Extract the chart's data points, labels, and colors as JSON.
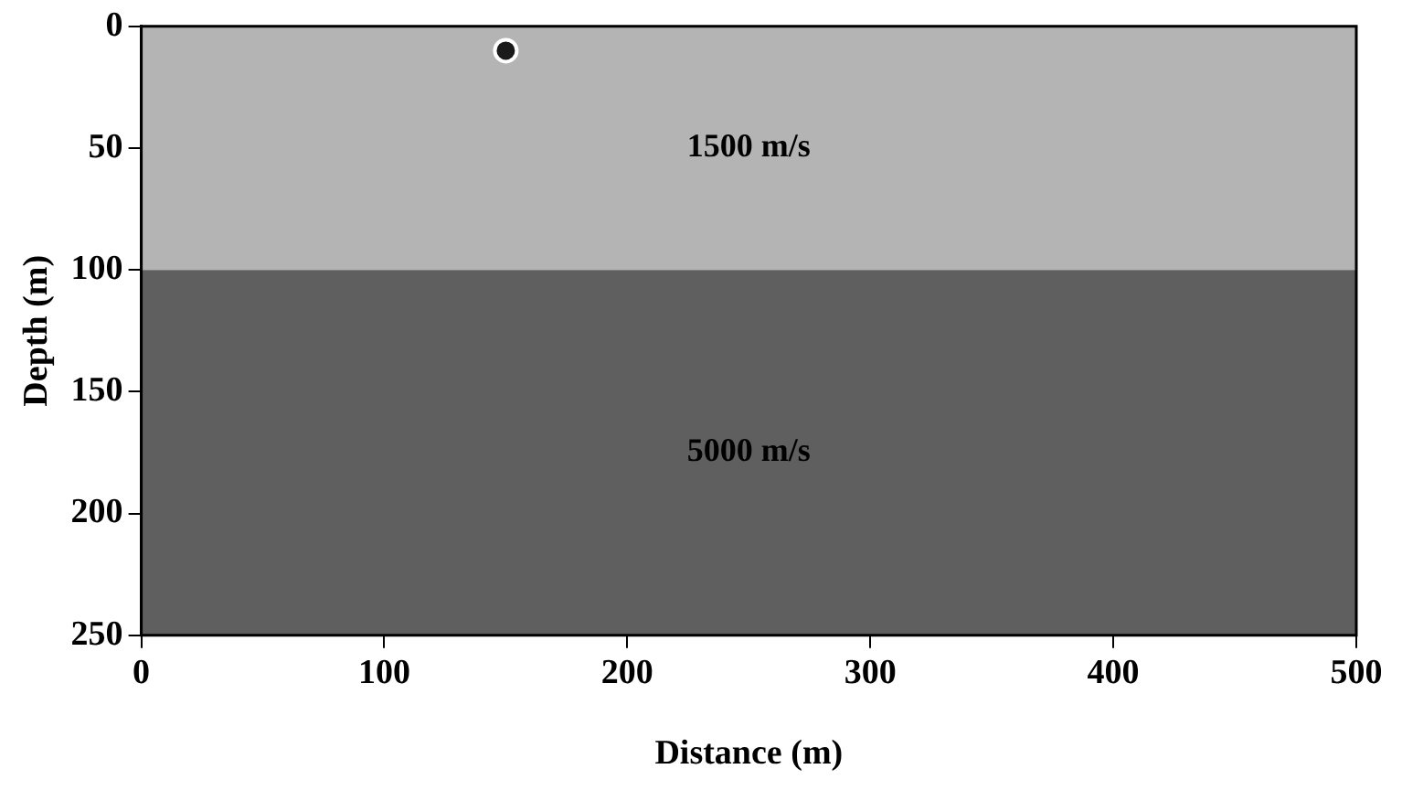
{
  "chart_data": {
    "type": "scatter",
    "xlabel": "Distance (m)",
    "ylabel": "Depth (m)",
    "x": [
      150
    ],
    "values": [
      10
    ],
    "color": "#1a1a1a",
    "marker": "circle",
    "xlim": [
      0,
      500
    ],
    "xticks": [
      0,
      100,
      200,
      300,
      400,
      500
    ],
    "ylim": [
      250,
      0
    ],
    "yticks": [
      0,
      50,
      100,
      150,
      200,
      250
    ],
    "bands": [
      {
        "axis": "y",
        "from": 0,
        "to": 100,
        "color": "#b4b4b4",
        "label": "1500 m/s"
      },
      {
        "axis": "y",
        "from": 100,
        "to": 250,
        "color": "#5f5f5f",
        "label": "5000 m/s"
      }
    ],
    "grid": false,
    "legend": false
  }
}
